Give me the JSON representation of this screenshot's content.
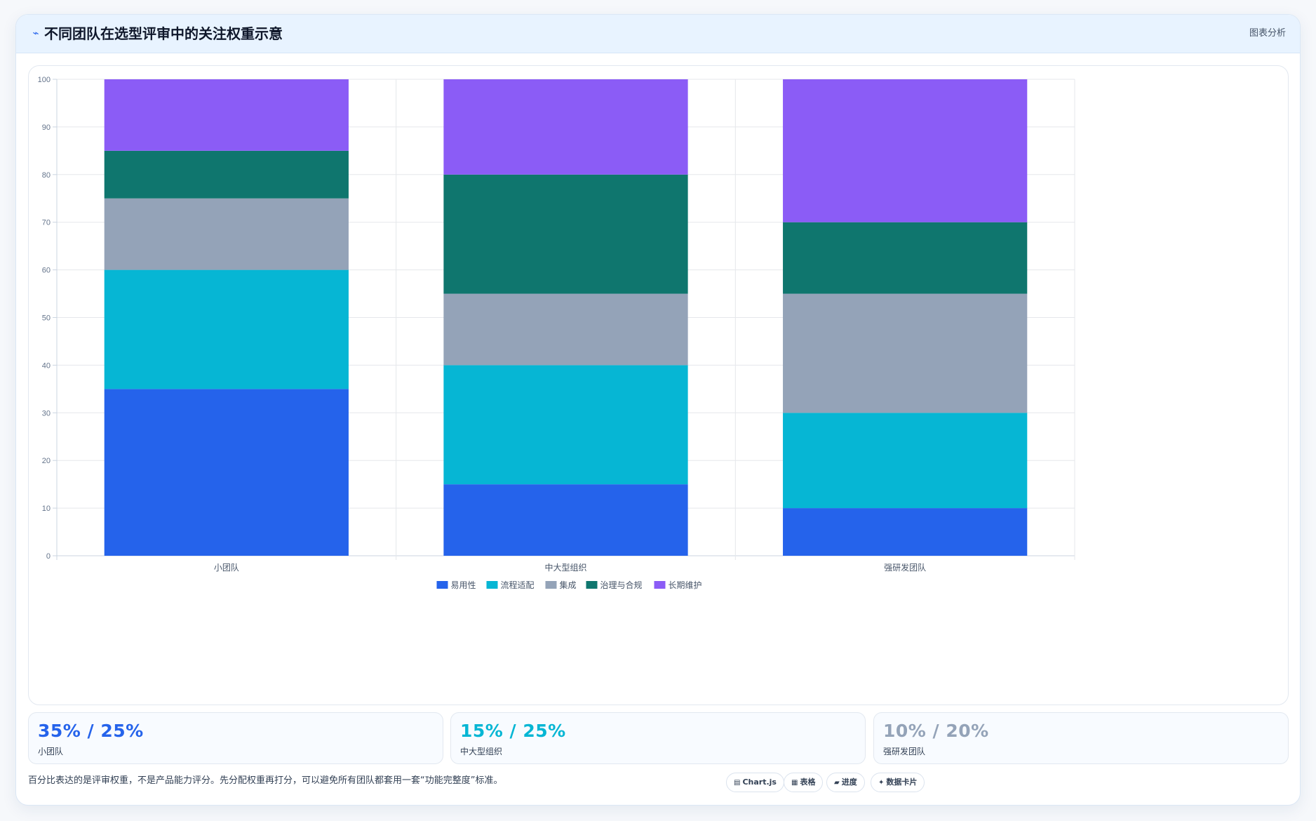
{
  "header": {
    "title": "不同团队在选型评审中的关注权重示意",
    "tag": "图表分析"
  },
  "colors": {
    "易用性": "#2563eb",
    "流程适配": "#06b6d4",
    "集成": "#94a3b8",
    "治理与合规": "#0f766e",
    "长期维护": "#8b5cf6"
  },
  "chart_data": {
    "type": "bar",
    "stacked": true,
    "categories": [
      "小团队",
      "中大型组织",
      "强研发团队"
    ],
    "series": [
      {
        "name": "易用性",
        "values": [
          35,
          15,
          10
        ]
      },
      {
        "name": "流程适配",
        "values": [
          25,
          25,
          20
        ]
      },
      {
        "name": "集成",
        "values": [
          15,
          15,
          25
        ]
      },
      {
        "name": "治理与合规",
        "values": [
          10,
          25,
          15
        ]
      },
      {
        "name": "长期维护",
        "values": [
          15,
          20,
          30
        ]
      }
    ],
    "ylim": [
      0,
      100
    ],
    "yticks": [
      0,
      10,
      20,
      30,
      40,
      50,
      60,
      70,
      80,
      90,
      100
    ],
    "grid": true,
    "legend": "bottom-center"
  },
  "stats": [
    {
      "value": "35% / 25%",
      "label": "小团队",
      "color": "#2563eb"
    },
    {
      "value": "15% / 25%",
      "label": "中大型组织",
      "color": "#06b6d4"
    },
    {
      "value": "10% / 20%",
      "label": "强研发团队",
      "color": "#94a3b8"
    }
  ],
  "footnote": "百分比表达的是评审权重，不是产品能力评分。先分配权重再打分，可以避免所有团队都套用一套“功能完整度”标准。",
  "chips": [
    {
      "icon": "chart-icon",
      "glyph": "▤",
      "label": "Chart.js"
    },
    {
      "icon": "table-icon",
      "glyph": "▦",
      "label": "表格"
    },
    {
      "icon": "progress-icon",
      "glyph": "▰",
      "label": "进度"
    },
    {
      "icon": "card-icon",
      "glyph": "✦",
      "label": "数据卡片"
    }
  ]
}
